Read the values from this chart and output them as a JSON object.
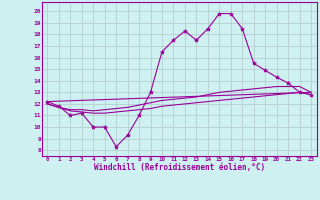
{
  "xlabel": "Windchill (Refroidissement éolien,°C)",
  "background_color": "#cff0f0",
  "line_color": "#990099",
  "grid_color": "#b0c8c8",
  "x_ticks": [
    0,
    1,
    2,
    3,
    4,
    5,
    6,
    7,
    8,
    9,
    10,
    11,
    12,
    13,
    14,
    15,
    16,
    17,
    18,
    19,
    20,
    21,
    22,
    23
  ],
  "y_ticks": [
    8,
    9,
    10,
    11,
    12,
    13,
    14,
    15,
    16,
    17,
    18,
    19,
    20
  ],
  "xlim": [
    -0.5,
    23.5
  ],
  "ylim": [
    7.5,
    20.8
  ],
  "series1_x": [
    0,
    1,
    2,
    3,
    4,
    5,
    6,
    7,
    8,
    9,
    10,
    11,
    12,
    13,
    14,
    15,
    16,
    17,
    18,
    19,
    20,
    21,
    22,
    23
  ],
  "series1_y": [
    12.2,
    11.8,
    11.0,
    11.2,
    10.0,
    10.0,
    8.3,
    9.3,
    11.0,
    13.0,
    16.5,
    17.5,
    18.3,
    17.5,
    18.5,
    19.8,
    19.8,
    18.5,
    15.5,
    14.9,
    14.3,
    13.8,
    13.0,
    12.8
  ],
  "series2_x": [
    0,
    1,
    2,
    3,
    4,
    5,
    6,
    7,
    8,
    9,
    10,
    11,
    12,
    13,
    14,
    15,
    16,
    17,
    18,
    19,
    20,
    21,
    22,
    23
  ],
  "series2_y": [
    12.0,
    11.7,
    11.5,
    11.5,
    11.4,
    11.5,
    11.6,
    11.7,
    11.9,
    12.1,
    12.3,
    12.4,
    12.5,
    12.6,
    12.8,
    13.0,
    13.1,
    13.2,
    13.3,
    13.4,
    13.5,
    13.5,
    13.5,
    13.0
  ],
  "series3_x": [
    0,
    1,
    2,
    3,
    4,
    5,
    6,
    7,
    8,
    9,
    10,
    11,
    12,
    13,
    14,
    15,
    16,
    17,
    18,
    19,
    20,
    21,
    22,
    23
  ],
  "series3_y": [
    12.0,
    11.7,
    11.4,
    11.3,
    11.2,
    11.2,
    11.3,
    11.4,
    11.5,
    11.6,
    11.8,
    11.9,
    12.0,
    12.1,
    12.2,
    12.3,
    12.4,
    12.5,
    12.6,
    12.7,
    12.8,
    12.9,
    13.0,
    12.8
  ],
  "series4_x": [
    0,
    23
  ],
  "series4_y": [
    12.2,
    13.0
  ]
}
